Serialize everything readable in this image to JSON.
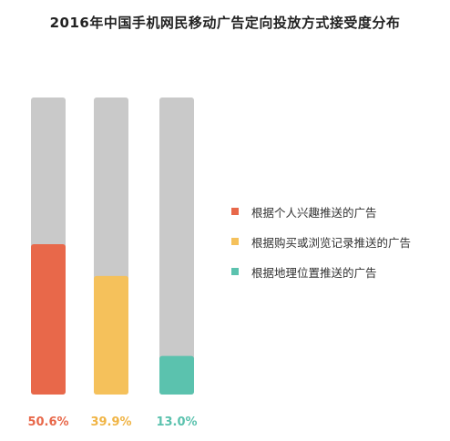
{
  "chart_data": {
    "type": "bar",
    "title": "2016年中国手机网民移动广告定向投放方式接受度分布",
    "categories": [
      "根据个人兴趣推送的广告",
      "根据购买或浏览记录推送的广告",
      "根据地理位置推送的广告"
    ],
    "values": [
      50.6,
      39.9,
      13.0
    ],
    "value_labels": [
      "50.6%",
      "39.9%",
      "13.0%"
    ],
    "ylim": [
      0,
      100
    ],
    "colors": [
      "#e8684a",
      "#f5c15b",
      "#5bc2ae"
    ],
    "track_color": "#c9c9c9",
    "label_colors": [
      "#e8684a",
      "#f0b445",
      "#5bc2ae"
    ],
    "legend_position": "right"
  }
}
